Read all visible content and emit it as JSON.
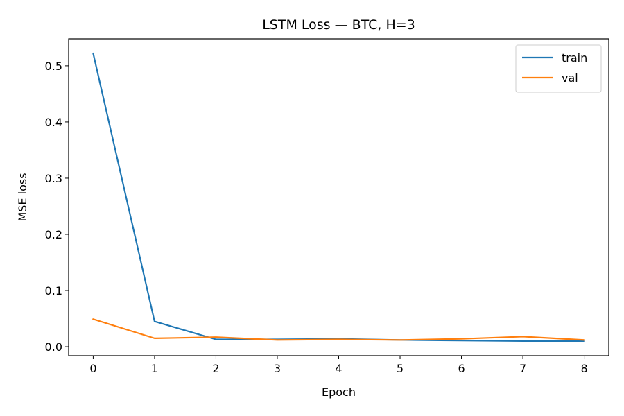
{
  "chart_data": {
    "type": "line",
    "title": "LSTM Loss — BTC, H=3",
    "xlabel": "Epoch",
    "ylabel": "MSE loss",
    "x": [
      0,
      1,
      2,
      3,
      4,
      5,
      6,
      7,
      8
    ],
    "xlim": [
      -0.4,
      8.4
    ],
    "ylim": [
      -0.016,
      0.548
    ],
    "xticks": [
      "0",
      "1",
      "2",
      "3",
      "4",
      "5",
      "6",
      "7",
      "8"
    ],
    "yticks": [
      "0.0",
      "0.1",
      "0.2",
      "0.3",
      "0.4",
      "0.5"
    ],
    "grid": false,
    "legend_position": "top-right",
    "series": [
      {
        "name": "train",
        "color": "#1f77b4",
        "values": [
          0.522,
          0.045,
          0.013,
          0.013,
          0.014,
          0.012,
          0.011,
          0.01,
          0.01
        ]
      },
      {
        "name": "val",
        "color": "#ff7f0e",
        "values": [
          0.049,
          0.015,
          0.017,
          0.012,
          0.013,
          0.012,
          0.014,
          0.018,
          0.012
        ]
      }
    ]
  }
}
